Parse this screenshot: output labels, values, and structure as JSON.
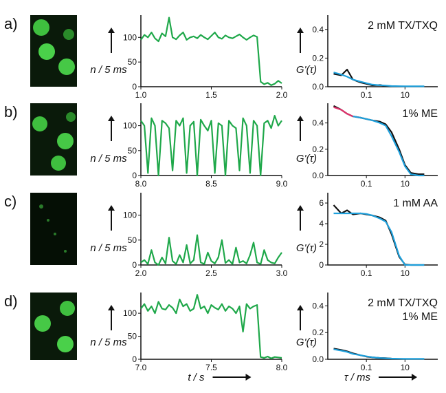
{
  "panel_labels": [
    "a)",
    "b)",
    "c)",
    "d)"
  ],
  "chart_data": [
    {
      "type": "line",
      "ylabel": "n / 5 ms",
      "xlim": [
        1,
        2
      ],
      "ylim": [
        0,
        145
      ],
      "xticks": [
        {
          "value": 1,
          "label": "1.0"
        },
        {
          "value": 1.5,
          "label": "1.5"
        },
        {
          "value": 2,
          "label": "2.0"
        }
      ],
      "yticks": [
        0,
        50,
        100
      ],
      "x": [
        1,
        1.025,
        1.05,
        1.075,
        1.1,
        1.125,
        1.15,
        1.175,
        1.2,
        1.225,
        1.25,
        1.275,
        1.3,
        1.325,
        1.35,
        1.375,
        1.4,
        1.425,
        1.45,
        1.475,
        1.5,
        1.525,
        1.55,
        1.575,
        1.6,
        1.625,
        1.65,
        1.675,
        1.7,
        1.725,
        1.75,
        1.775,
        1.8,
        1.825,
        1.85,
        1.875,
        1.9,
        1.925,
        1.95,
        1.975,
        2
      ],
      "series": [
        {
          "color": "#1fa84a",
          "values": [
            95,
            105,
            100,
            110,
            98,
            92,
            108,
            102,
            140,
            100,
            96,
            104,
            110,
            95,
            100,
            102,
            98,
            105,
            100,
            96,
            103,
            110,
            100,
            97,
            104,
            100,
            98,
            102,
            106,
            100,
            95,
            100,
            104,
            101,
            10,
            5,
            8,
            3,
            6,
            12,
            7
          ]
        }
      ]
    },
    {
      "type": "line",
      "ylabel": "G'(τ)",
      "xscale": "log",
      "annotations": [
        "2 mM TX/TXQ"
      ],
      "xlim": [
        0.001,
        500
      ],
      "ylim": [
        0,
        0.5
      ],
      "xticks": [
        0.1,
        10
      ],
      "yticks": [
        {
          "value": 0,
          "label": "0.0"
        },
        {
          "value": 0.2,
          "label": "0.2"
        },
        {
          "value": 0.4,
          "label": "0.4"
        }
      ],
      "x": [
        0.002,
        0.005,
        0.01,
        0.02,
        0.05,
        0.1,
        0.2,
        0.5,
        1,
        2,
        5,
        10,
        20,
        50,
        100
      ],
      "series": [
        {
          "color": "#111111",
          "values": [
            0.09,
            0.08,
            0.12,
            0.05,
            0.03,
            0.02,
            0.01,
            0.012,
            0.005,
            0.004,
            null,
            null,
            null,
            null,
            null
          ]
        },
        {
          "color": "#1ea0dc",
          "values": [
            0.1,
            0.085,
            0.07,
            0.05,
            0.035,
            0.025,
            0.015,
            0.01,
            0.008,
            0.005,
            0.004,
            0.003,
            0.003,
            0.003,
            0.003
          ]
        }
      ]
    },
    {
      "type": "line",
      "ylabel": "n / 5 ms",
      "xlim": [
        8,
        9
      ],
      "ylim": [
        0,
        145
      ],
      "xticks": [
        {
          "value": 8,
          "label": "8.0"
        },
        {
          "value": 8.5,
          "label": "8.5"
        },
        {
          "value": 9,
          "label": "9.0"
        }
      ],
      "yticks": [
        0,
        50,
        100
      ],
      "x": [
        8,
        8.025,
        8.05,
        8.075,
        8.1,
        8.125,
        8.15,
        8.175,
        8.2,
        8.225,
        8.25,
        8.275,
        8.3,
        8.325,
        8.35,
        8.375,
        8.4,
        8.425,
        8.45,
        8.475,
        8.5,
        8.525,
        8.55,
        8.575,
        8.6,
        8.625,
        8.65,
        8.675,
        8.7,
        8.725,
        8.75,
        8.775,
        8.8,
        8.825,
        8.85,
        8.875,
        8.9,
        8.925,
        8.95,
        8.975,
        9
      ],
      "series": [
        {
          "color": "#1fa84a",
          "values": [
            110,
            100,
            5,
            115,
            100,
            0,
            110,
            105,
            95,
            10,
            110,
            100,
            115,
            5,
            100,
            108,
            0,
            112,
            100,
            90,
            110,
            5,
            105,
            100,
            0,
            110,
            100,
            95,
            10,
            115,
            100,
            5,
            110,
            100,
            0,
            105,
            110,
            95,
            120,
            100,
            110
          ]
        }
      ]
    },
    {
      "type": "line",
      "ylabel": "G'(τ)",
      "xscale": "log",
      "annotations": [
        "1% ME"
      ],
      "xlim": [
        0.001,
        500
      ],
      "ylim": [
        0,
        0.55
      ],
      "xticks": [
        0.1,
        10
      ],
      "yticks": [
        {
          "value": 0,
          "label": "0.0"
        },
        {
          "value": 0.2,
          "label": "0.2"
        },
        {
          "value": 0.4,
          "label": "0.4"
        }
      ],
      "x": [
        0.002,
        0.005,
        0.01,
        0.02,
        0.05,
        0.1,
        0.2,
        0.5,
        1,
        2,
        5,
        10,
        20,
        50,
        100
      ],
      "series": [
        {
          "color": "#111111",
          "values": [
            0.53,
            0.5,
            0.47,
            0.45,
            0.44,
            0.43,
            0.42,
            0.41,
            0.39,
            0.33,
            0.2,
            0.08,
            0.02,
            0.01,
            0.01
          ]
        },
        {
          "color": "#e0306a",
          "values": [
            0.52,
            0.5,
            0.47,
            0.45,
            0.44,
            null,
            null,
            null,
            null,
            null,
            null,
            null,
            null,
            null,
            null
          ]
        },
        {
          "color": "#1ea0dc",
          "values": [
            null,
            null,
            null,
            0.45,
            0.44,
            0.43,
            0.42,
            0.4,
            0.38,
            0.3,
            0.18,
            0.07,
            0.01,
            0,
            0
          ]
        }
      ]
    },
    {
      "type": "line",
      "ylabel": "n / 5 ms",
      "xlim": [
        2,
        3
      ],
      "ylim": [
        0,
        145
      ],
      "xticks": [
        {
          "value": 2,
          "label": "2.0"
        },
        {
          "value": 2.5,
          "label": "2.5"
        },
        {
          "value": 3,
          "label": "3.0"
        }
      ],
      "yticks": [
        0,
        50,
        100
      ],
      "x": [
        2,
        2.025,
        2.05,
        2.075,
        2.1,
        2.125,
        2.15,
        2.175,
        2.2,
        2.225,
        2.25,
        2.275,
        2.3,
        2.325,
        2.35,
        2.375,
        2.4,
        2.425,
        2.45,
        2.475,
        2.5,
        2.525,
        2.55,
        2.575,
        2.6,
        2.625,
        2.65,
        2.675,
        2.7,
        2.725,
        2.75,
        2.775,
        2.8,
        2.825,
        2.85,
        2.875,
        2.9,
        2.925,
        2.95,
        2.975,
        3
      ],
      "series": [
        {
          "color": "#1fa84a",
          "values": [
            5,
            10,
            2,
            30,
            5,
            0,
            15,
            3,
            55,
            8,
            2,
            20,
            5,
            40,
            3,
            10,
            60,
            5,
            2,
            25,
            8,
            3,
            15,
            50,
            4,
            10,
            2,
            35,
            5,
            8,
            3,
            20,
            45,
            5,
            2,
            30,
            10,
            5,
            3,
            15,
            25
          ]
        }
      ]
    },
    {
      "type": "line",
      "ylabel": "G'(τ)",
      "xscale": "log",
      "annotations": [
        "1 mM AA"
      ],
      "xlim": [
        0.001,
        500
      ],
      "ylim": [
        0,
        7
      ],
      "xticks": [
        0.1,
        10
      ],
      "yticks": [
        0,
        2,
        4,
        6
      ],
      "x": [
        0.002,
        0.005,
        0.01,
        0.02,
        0.05,
        0.1,
        0.2,
        0.5,
        1,
        2,
        5,
        10,
        20,
        50,
        100
      ],
      "series": [
        {
          "color": "#111111",
          "values": [
            5.8,
            5,
            5.3,
            4.9,
            5,
            4.9,
            4.8,
            4.6,
            4.3,
            3,
            0.8,
            0.05,
            0,
            0,
            0
          ]
        },
        {
          "color": "#1ea0dc",
          "values": [
            5,
            5,
            5,
            5,
            5,
            4.95,
            4.8,
            4.5,
            4.2,
            3.2,
            0.9,
            0,
            0,
            0,
            0
          ]
        }
      ]
    },
    {
      "type": "line",
      "ylabel": "n / 5 ms",
      "xlabel": "t / s",
      "xlim": [
        7,
        8
      ],
      "ylim": [
        0,
        145
      ],
      "xticks": [
        {
          "value": 7,
          "label": "7.0"
        },
        {
          "value": 7.5,
          "label": "7.5"
        },
        {
          "value": 8,
          "label": "8.0"
        }
      ],
      "yticks": [
        0,
        50,
        100
      ],
      "x": [
        7,
        7.025,
        7.05,
        7.075,
        7.1,
        7.125,
        7.15,
        7.175,
        7.2,
        7.225,
        7.25,
        7.275,
        7.3,
        7.325,
        7.35,
        7.375,
        7.4,
        7.425,
        7.45,
        7.475,
        7.5,
        7.525,
        7.55,
        7.575,
        7.6,
        7.625,
        7.65,
        7.675,
        7.7,
        7.725,
        7.75,
        7.775,
        7.8,
        7.825,
        7.85,
        7.875,
        7.9,
        7.925,
        7.95,
        7.975,
        8
      ],
      "series": [
        {
          "color": "#1fa84a",
          "values": [
            110,
            120,
            105,
            115,
            100,
            125,
            110,
            108,
            118,
            112,
            100,
            130,
            115,
            120,
            105,
            110,
            140,
            110,
            115,
            100,
            118,
            112,
            108,
            120,
            105,
            115,
            110,
            100,
            115,
            60,
            120,
            110,
            115,
            118,
            5,
            3,
            6,
            2,
            5,
            4,
            3
          ]
        }
      ]
    },
    {
      "type": "line",
      "ylabel": "G'(τ)",
      "xlabel": "τ / ms",
      "xscale": "log",
      "annotations": [
        "2 mM TX/TXQ",
        "1% ME"
      ],
      "xlim": [
        0.001,
        500
      ],
      "ylim": [
        0,
        0.5
      ],
      "xticks": [
        0.1,
        10
      ],
      "yticks": [
        {
          "value": 0,
          "label": "0.0"
        },
        {
          "value": 0.2,
          "label": "0.2"
        },
        {
          "value": 0.4,
          "label": "0.4"
        }
      ],
      "x": [
        0.002,
        0.005,
        0.01,
        0.02,
        0.05,
        0.1,
        0.2,
        0.5,
        1,
        2,
        5,
        10,
        20,
        50,
        100
      ],
      "series": [
        {
          "color": "#111111",
          "values": [
            0.08,
            0.07,
            0.06,
            0.045,
            0.03,
            0.02,
            0.015,
            0.01,
            0.008,
            0.005,
            null,
            null,
            null,
            null,
            null
          ]
        },
        {
          "color": "#1ea0dc",
          "values": [
            0.075,
            0.065,
            0.055,
            0.04,
            0.03,
            0.022,
            0.015,
            0.01,
            0.007,
            0.005,
            0.004,
            0.003,
            0.003,
            0.003,
            0.003
          ]
        }
      ]
    }
  ]
}
